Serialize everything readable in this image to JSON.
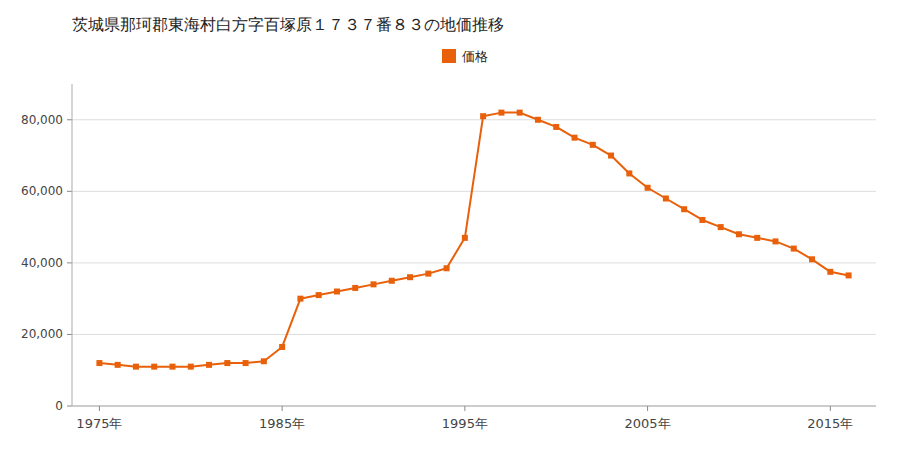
{
  "chart_data": {
    "type": "line",
    "title": "茨城県那珂郡東海村白方字百塚原１７３７番８３の地価推移",
    "x": [
      1975,
      1976,
      1977,
      1978,
      1979,
      1980,
      1981,
      1982,
      1983,
      1984,
      1985,
      1986,
      1987,
      1988,
      1989,
      1990,
      1991,
      1992,
      1993,
      1994,
      1995,
      1996,
      1997,
      1998,
      1999,
      2000,
      2001,
      2002,
      2003,
      2004,
      2005,
      2006,
      2007,
      2008,
      2009,
      2010,
      2011,
      2012,
      2013,
      2014,
      2015,
      2016
    ],
    "series": [
      {
        "name": "価格",
        "color": "#e8600a",
        "marker": "square",
        "line_style": "solid",
        "values": [
          12000,
          11500,
          11000,
          11000,
          11000,
          11000,
          11500,
          12000,
          12000,
          12500,
          16500,
          30000,
          31000,
          32000,
          33000,
          34000,
          35000,
          36000,
          37000,
          38500,
          47000,
          81000,
          82000,
          82000,
          80000,
          78000,
          75000,
          73000,
          70000,
          65000,
          61000,
          58000,
          55000,
          52000,
          50000,
          48000,
          47000,
          46000,
          44000,
          41000,
          37500,
          36500
        ]
      }
    ],
    "xlim": [
      1973.5,
      2017.5
    ],
    "xticks": [
      {
        "value": 1975,
        "label": "1975年"
      },
      {
        "value": 1985,
        "label": "1985年"
      },
      {
        "value": 1995,
        "label": "1995年"
      },
      {
        "value": 2005,
        "label": "2005年"
      },
      {
        "value": 2015,
        "label": "2015年"
      }
    ],
    "ylim": [
      0,
      90000
    ],
    "yticks": [
      0,
      {
        "value": 20000,
        "label": "20,000"
      },
      {
        "value": 40000,
        "label": "40,000"
      },
      {
        "value": 60000,
        "label": "60,000"
      },
      {
        "value": 80000,
        "label": "80,000"
      }
    ],
    "grid": true,
    "legend": "top"
  }
}
